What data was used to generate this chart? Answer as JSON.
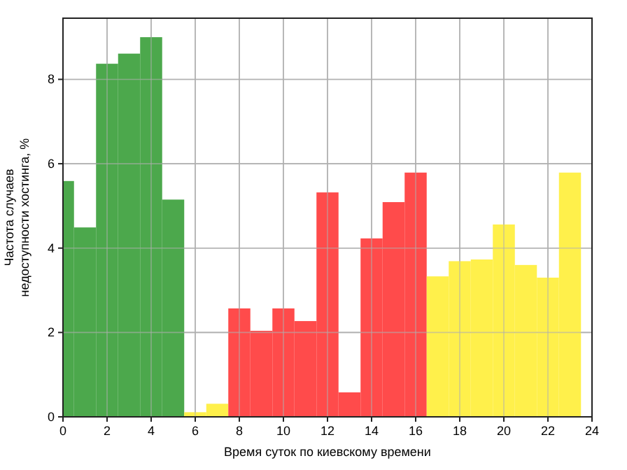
{
  "chart_data": {
    "type": "histogram",
    "xlabel": "Время суток по киевскому времени",
    "ylabel": "Частота случаев\nнедоступности хостинга, %",
    "bins": [
      0,
      0.5,
      1.5,
      2.5,
      3.5,
      4.5,
      5.5,
      6.5,
      7.5,
      8.5,
      9.5,
      10.5,
      11.5,
      12.5,
      13.5,
      14.5,
      15.5,
      16.5,
      17.5,
      18.5,
      19.5,
      20.5,
      21.5,
      22.5,
      23.5
    ],
    "values": [
      5.59,
      4.49,
      8.37,
      8.61,
      9.0,
      5.15,
      0.11,
      0.31,
      2.57,
      2.04,
      2.57,
      2.27,
      5.32,
      0.58,
      4.23,
      5.09,
      5.79,
      3.33,
      3.69,
      3.73,
      4.56,
      3.6,
      3.3,
      5.79
    ],
    "colors": [
      "#4ca84c",
      "#4ca84c",
      "#4ca84c",
      "#4ca84c",
      "#4ca84c",
      "#4ca84c",
      "#fff04b",
      "#fff04b",
      "#ff4b4b",
      "#ff4b4b",
      "#ff4b4b",
      "#ff4b4b",
      "#ff4b4b",
      "#ff4b4b",
      "#ff4b4b",
      "#ff4b4b",
      "#ff4b4b",
      "#fff04b",
      "#fff04b",
      "#fff04b",
      "#fff04b",
      "#fff04b",
      "#fff04b",
      "#fff04b"
    ],
    "xlim": [
      0,
      24
    ],
    "xticks": [
      0,
      2,
      4,
      6,
      8,
      10,
      12,
      14,
      16,
      18,
      20,
      22,
      24
    ],
    "ylim": [
      0,
      9.45
    ],
    "yticks": [
      0,
      2,
      4,
      6,
      8
    ],
    "grid": true
  }
}
